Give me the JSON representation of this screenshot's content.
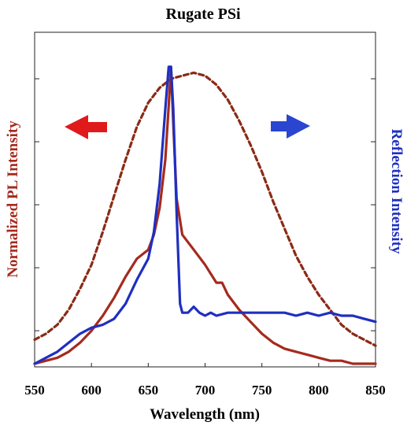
{
  "chart_data": {
    "type": "line",
    "title": "Rugate PSi",
    "xlabel": "Wavelength (nm)",
    "ylabel_left": "Normalized PL Intensity",
    "ylabel_right": "Reflection Intensity",
    "xlim": [
      550,
      850
    ],
    "ylim": [
      0,
      1
    ],
    "xticks": [
      550,
      600,
      650,
      700,
      750,
      800,
      850
    ],
    "yticks": [
      0.11,
      0.32,
      0.53,
      0.74,
      0.95
    ],
    "colors": {
      "pl": "#a52a1e",
      "pl_dashed": "#8b2a16",
      "reflection": "#1f2fc0",
      "left_arrow": "#e01a1a",
      "right_arrow": "#2a45d0"
    },
    "annotations": [
      {
        "type": "arrow",
        "direction": "left",
        "color": "red",
        "meaning": "left axis"
      },
      {
        "type": "arrow",
        "direction": "right",
        "color": "blue",
        "meaning": "right axis"
      }
    ],
    "series": [
      {
        "style": "dashed",
        "axis": "left",
        "x": [
          550,
          560,
          570,
          580,
          590,
          600,
          610,
          620,
          630,
          640,
          650,
          660,
          670,
          680,
          690,
          700,
          710,
          720,
          730,
          740,
          750,
          760,
          770,
          780,
          790,
          800,
          810,
          820,
          830,
          840,
          850
        ],
        "y": [
          0.08,
          0.1,
          0.13,
          0.18,
          0.25,
          0.33,
          0.44,
          0.56,
          0.68,
          0.79,
          0.87,
          0.92,
          0.95,
          0.96,
          0.97,
          0.96,
          0.93,
          0.88,
          0.81,
          0.73,
          0.64,
          0.54,
          0.45,
          0.36,
          0.29,
          0.23,
          0.18,
          0.13,
          0.1,
          0.08,
          0.06
        ]
      },
      {
        "style": "solid",
        "axis": "left",
        "x": [
          550,
          560,
          570,
          580,
          590,
          600,
          610,
          620,
          630,
          640,
          650,
          655,
          660,
          665,
          668,
          670,
          672,
          675,
          680,
          690,
          700,
          710,
          715,
          720,
          730,
          740,
          750,
          760,
          770,
          780,
          790,
          800,
          810,
          820,
          830,
          840,
          850
        ],
        "y": [
          0.0,
          0.01,
          0.02,
          0.04,
          0.07,
          0.11,
          0.16,
          0.22,
          0.29,
          0.35,
          0.38,
          0.43,
          0.52,
          0.68,
          0.86,
          0.99,
          0.8,
          0.55,
          0.43,
          0.38,
          0.33,
          0.27,
          0.27,
          0.23,
          0.18,
          0.14,
          0.1,
          0.07,
          0.05,
          0.04,
          0.03,
          0.02,
          0.01,
          0.01,
          0.0,
          0.0,
          0.0
        ]
      },
      {
        "style": "solid",
        "axis": "right",
        "x": [
          550,
          560,
          570,
          580,
          590,
          600,
          610,
          620,
          630,
          640,
          650,
          655,
          660,
          665,
          668,
          670,
          672,
          675,
          678,
          680,
          685,
          690,
          695,
          700,
          705,
          710,
          720,
          730,
          740,
          750,
          760,
          770,
          780,
          790,
          800,
          810,
          820,
          830,
          840,
          850
        ],
        "y": [
          0.0,
          0.02,
          0.04,
          0.07,
          0.1,
          0.12,
          0.13,
          0.15,
          0.2,
          0.28,
          0.35,
          0.44,
          0.6,
          0.85,
          0.99,
          0.99,
          0.85,
          0.5,
          0.2,
          0.17,
          0.17,
          0.19,
          0.17,
          0.16,
          0.17,
          0.16,
          0.17,
          0.17,
          0.17,
          0.17,
          0.17,
          0.17,
          0.16,
          0.17,
          0.16,
          0.17,
          0.16,
          0.16,
          0.15,
          0.14
        ]
      }
    ]
  }
}
